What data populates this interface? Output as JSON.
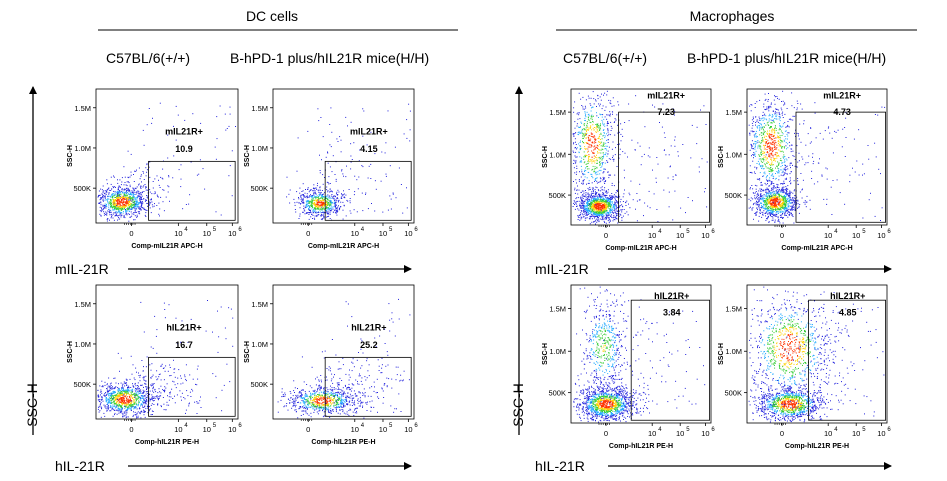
{
  "groups": [
    {
      "title": "DC cells",
      "genotypes": [
        "C57BL/6(+/+)",
        "B-hPD-1 plus/hIL21R mice(H/H)"
      ]
    },
    {
      "title": "Macrophages",
      "genotypes": [
        "C57BL/6(+/+)",
        "B-hPD-1 plus/hIL21R mice(H/H)"
      ]
    }
  ],
  "row_labels": [
    "mIL-21R",
    "hIL-21R"
  ],
  "side_label": "SSC-H",
  "chart_data": [
    {
      "type": "scatter",
      "group": "DC cells",
      "genotype": "C57BL/6(+/+)",
      "marker": "mIL-21R",
      "xlabel": "Comp-mIL21R APC-H",
      "ylabel": "SSC-H",
      "yticks": [
        "500K",
        "1.0M",
        "1.5M"
      ],
      "ylim": [
        0,
        1800000
      ],
      "xticks": [
        "0",
        "10",
        "10",
        "10"
      ],
      "xtick_exps": [
        "",
        "4",
        "5",
        "6"
      ],
      "gate_label": "mIL21R+",
      "gate_value": "10.9"
    },
    {
      "type": "scatter",
      "group": "DC cells",
      "genotype": "B-hPD-1 plus/hIL21R mice(H/H)",
      "marker": "mIL-21R",
      "xlabel": "Comp-mIL21R APC-H",
      "ylabel": "SSC-H",
      "yticks": [
        "500K",
        "1.0M",
        "1.5M"
      ],
      "ylim": [
        0,
        1800000
      ],
      "xticks": [
        "0",
        "10",
        "10",
        "10"
      ],
      "xtick_exps": [
        "",
        "4",
        "5",
        "6"
      ],
      "gate_label": "mIL21R+",
      "gate_value": "4.15"
    },
    {
      "type": "scatter",
      "group": "Macrophages",
      "genotype": "C57BL/6(+/+)",
      "marker": "mIL-21R",
      "xlabel": "Comp-mIL21R APC-H",
      "ylabel": "SSC-H",
      "yticks": [
        "500K",
        "1.0M",
        "1.5M"
      ],
      "ylim": [
        0,
        1600000
      ],
      "xticks": [
        "0",
        "10",
        "10",
        "10"
      ],
      "xtick_exps": [
        "",
        "4",
        "5",
        "6"
      ],
      "gate_label": "mIL21R+",
      "gate_value": "7.23"
    },
    {
      "type": "scatter",
      "group": "Macrophages",
      "genotype": "B-hPD-1 plus/hIL21R mice(H/H)",
      "marker": "mIL-21R",
      "xlabel": "Comp-mIL21R APC-H",
      "ylabel": "SSC-H",
      "yticks": [
        "500K",
        "1.0M",
        "1.5M"
      ],
      "ylim": [
        0,
        1600000
      ],
      "xticks": [
        "0",
        "10",
        "10",
        "10"
      ],
      "xtick_exps": [
        "",
        "4",
        "5",
        "6"
      ],
      "gate_label": "mIL21R+",
      "gate_value": "4.73"
    },
    {
      "type": "scatter",
      "group": "DC cells",
      "genotype": "C57BL/6(+/+)",
      "marker": "hIL-21R",
      "xlabel": "Comp-hIL21R PE-H",
      "ylabel": "SSC-H",
      "yticks": [
        "500K",
        "1.0M",
        "1.5M"
      ],
      "ylim": [
        0,
        1800000
      ],
      "xticks": [
        "0",
        "10",
        "10",
        "10"
      ],
      "xtick_exps": [
        "",
        "4",
        "5",
        "6"
      ],
      "gate_label": "hIL21R+",
      "gate_value": "16.7"
    },
    {
      "type": "scatter",
      "group": "DC cells",
      "genotype": "B-hPD-1 plus/hIL21R mice(H/H)",
      "marker": "hIL-21R",
      "xlabel": "Comp-hIL21R PE-H",
      "ylabel": "SSC-H",
      "yticks": [
        "500K",
        "1.0M",
        "1.5M"
      ],
      "ylim": [
        0,
        1800000
      ],
      "xticks": [
        "0",
        "10",
        "10",
        "10"
      ],
      "xtick_exps": [
        "",
        "4",
        "5",
        "6"
      ],
      "gate_label": "hIL21R+",
      "gate_value": "25.2"
    },
    {
      "type": "scatter",
      "group": "Macrophages",
      "genotype": "C57BL/6(+/+)",
      "marker": "hIL-21R",
      "xlabel": "Comp-hIL21R PE-H",
      "ylabel": "SSC-H",
      "yticks": [
        "500K",
        "1.0M",
        "1.5M"
      ],
      "ylim": [
        0,
        1600000
      ],
      "xticks": [
        "0",
        "10",
        "10",
        "10"
      ],
      "xtick_exps": [
        "",
        "4",
        "5",
        "6"
      ],
      "gate_label": "hIL21R+",
      "gate_value": "3.84"
    },
    {
      "type": "scatter",
      "group": "Macrophages",
      "genotype": "B-hPD-1 plus/hIL21R mice(H/H)",
      "marker": "hIL-21R",
      "xlabel": "Comp-hIL21R PE-H",
      "ylabel": "SSC-H",
      "yticks": [
        "500K",
        "1.0M",
        "1.5M"
      ],
      "ylim": [
        0,
        1600000
      ],
      "xticks": [
        "0",
        "10",
        "10",
        "10"
      ],
      "xtick_exps": [
        "",
        "4",
        "5",
        "6"
      ],
      "gate_label": "hIL21R+",
      "gate_value": "4.85"
    }
  ]
}
